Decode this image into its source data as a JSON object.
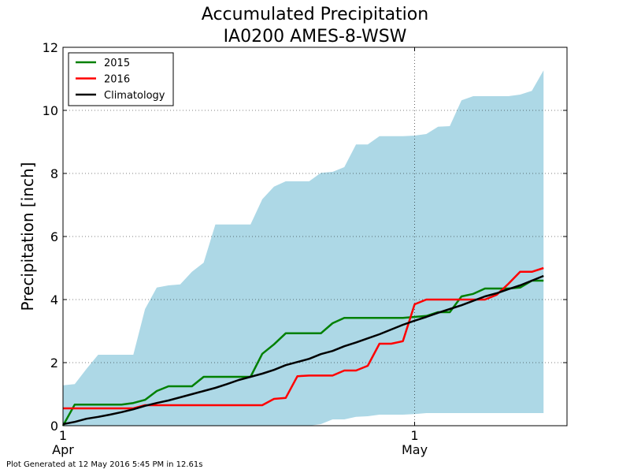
{
  "chart_data": {
    "type": "line",
    "title": [
      "Accumulated Precipitation",
      "IA0200 AMES-8-WSW"
    ],
    "xlabel": "",
    "ylabel": "Precipitation [inch]",
    "ylim": [
      0,
      12
    ],
    "xlim": [
      1,
      44
    ],
    "yticks": [
      0,
      2,
      4,
      6,
      8,
      10,
      12
    ],
    "xticks": [
      {
        "x": 1,
        "label": [
          "1",
          "Apr"
        ]
      },
      {
        "x": 31,
        "label": [
          "1",
          "May"
        ]
      }
    ],
    "grid": "dotted",
    "legend_position": "top-left",
    "range_band": {
      "color": "#add8e6",
      "x": [
        1,
        2,
        3,
        4,
        5,
        6,
        7,
        8,
        9,
        10,
        11,
        12,
        13,
        14,
        15,
        16,
        17,
        18,
        19,
        20,
        21,
        22,
        23,
        24,
        25,
        26,
        27,
        28,
        29,
        30,
        31,
        32,
        33,
        34,
        35,
        36,
        37,
        38,
        39,
        40,
        41,
        42
      ],
      "lower": [
        0,
        0,
        0,
        0,
        0,
        0,
        0,
        0,
        0,
        0,
        0,
        0,
        0,
        0,
        0,
        0,
        0,
        0,
        0,
        0,
        0,
        0,
        0.05,
        0.2,
        0.2,
        0.28,
        0.3,
        0.35,
        0.35,
        0.35,
        0.37,
        0.4,
        0.4,
        0.4,
        0.4,
        0.4,
        0.4,
        0.4,
        0.4,
        0.4,
        0.4,
        0.4
      ],
      "upper": [
        1.28,
        1.32,
        1.8,
        2.25,
        2.25,
        2.25,
        2.25,
        3.7,
        4.38,
        4.45,
        4.48,
        4.88,
        5.17,
        6.38,
        6.38,
        6.38,
        6.38,
        7.18,
        7.58,
        7.75,
        7.75,
        7.75,
        8.02,
        8.05,
        8.2,
        8.92,
        8.92,
        9.18,
        9.18,
        9.18,
        9.2,
        9.25,
        9.48,
        9.5,
        10.32,
        10.45,
        10.45,
        10.45,
        10.45,
        10.5,
        10.62,
        11.27
      ]
    },
    "series": [
      {
        "name": "2015",
        "color": "#008000",
        "x": [
          1,
          2,
          3,
          4,
          5,
          6,
          7,
          8,
          9,
          10,
          11,
          12,
          13,
          14,
          15,
          16,
          17,
          18,
          19,
          20,
          21,
          22,
          23,
          24,
          25,
          26,
          27,
          28,
          29,
          30,
          31,
          32,
          33,
          34,
          35,
          36,
          37,
          38,
          39,
          40,
          41,
          42
        ],
        "values": [
          0,
          0.67,
          0.67,
          0.67,
          0.67,
          0.67,
          0.72,
          0.82,
          1.1,
          1.25,
          1.25,
          1.25,
          1.55,
          1.55,
          1.55,
          1.55,
          1.55,
          2.28,
          2.58,
          2.93,
          2.93,
          2.93,
          2.93,
          3.25,
          3.42,
          3.42,
          3.42,
          3.42,
          3.42,
          3.42,
          3.45,
          3.48,
          3.6,
          3.6,
          4.1,
          4.18,
          4.35,
          4.35,
          4.35,
          4.38,
          4.6,
          4.6
        ]
      },
      {
        "name": "2016",
        "color": "#ff0000",
        "x": [
          1,
          2,
          3,
          4,
          5,
          6,
          7,
          8,
          9,
          10,
          11,
          12,
          13,
          14,
          15,
          16,
          17,
          18,
          19,
          20,
          21,
          22,
          23,
          24,
          25,
          26,
          27,
          28,
          29,
          30,
          31,
          32,
          33,
          34,
          35,
          36,
          37,
          38,
          39,
          40,
          41,
          42
        ],
        "values": [
          0.55,
          0.55,
          0.55,
          0.55,
          0.55,
          0.55,
          0.55,
          0.65,
          0.65,
          0.65,
          0.65,
          0.65,
          0.65,
          0.65,
          0.65,
          0.65,
          0.65,
          0.65,
          0.85,
          0.88,
          1.57,
          1.59,
          1.59,
          1.59,
          1.75,
          1.75,
          1.9,
          2.6,
          2.6,
          2.68,
          3.85,
          4.0,
          4.0,
          4.0,
          4.0,
          4.0,
          4.0,
          4.15,
          4.5,
          4.88,
          4.88,
          5.0
        ]
      },
      {
        "name": "Climatology",
        "color": "#000000",
        "x": [
          1,
          2,
          3,
          4,
          5,
          6,
          7,
          8,
          9,
          10,
          11,
          12,
          13,
          14,
          15,
          16,
          17,
          18,
          19,
          20,
          21,
          22,
          23,
          24,
          25,
          26,
          27,
          28,
          29,
          30,
          31,
          32,
          33,
          34,
          35,
          36,
          37,
          38,
          39,
          40,
          41,
          42
        ],
        "values": [
          0.05,
          0.12,
          0.22,
          0.28,
          0.35,
          0.43,
          0.52,
          0.63,
          0.72,
          0.8,
          0.9,
          1.0,
          1.1,
          1.2,
          1.32,
          1.45,
          1.55,
          1.65,
          1.77,
          1.92,
          2.02,
          2.12,
          2.27,
          2.37,
          2.52,
          2.64,
          2.77,
          2.9,
          3.05,
          3.2,
          3.33,
          3.45,
          3.58,
          3.7,
          3.82,
          3.96,
          4.1,
          4.2,
          4.33,
          4.45,
          4.6,
          4.75
        ]
      }
    ]
  },
  "footer": "Plot Generated at 12 May 2016 5:45 PM in 12.61s"
}
